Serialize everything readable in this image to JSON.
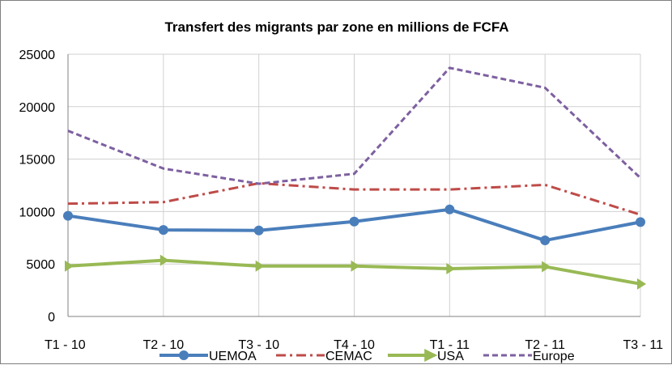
{
  "chart_data": {
    "type": "line",
    "title": "Transfert des migrants par zone en millions de FCFA",
    "categories": [
      "T1 - 10",
      "T2 - 10",
      "T3 - 10",
      "T4 - 10",
      "T1 - 11",
      "T2 - 11",
      "T3 - 11"
    ],
    "ylim": [
      0,
      25000
    ],
    "yticks": [
      0,
      5000,
      10000,
      15000,
      20000,
      25000
    ],
    "grid": true,
    "legend_position": "bottom",
    "series": [
      {
        "name": "UEMOA",
        "color": "#4a7ebb",
        "style": "solid-circle",
        "values": [
          9600,
          8250,
          8200,
          9050,
          10200,
          7250,
          9000
        ]
      },
      {
        "name": "CEMAC",
        "color": "#be4b48",
        "style": "dash-dot",
        "values": [
          10750,
          10900,
          12700,
          12100,
          12100,
          12550,
          9700
        ]
      },
      {
        "name": "USA",
        "color": "#98b954",
        "style": "solid-arrow",
        "values": [
          4800,
          5350,
          4800,
          4800,
          4550,
          4750,
          3100
        ]
      },
      {
        "name": "Europe",
        "color": "#7d60a0",
        "style": "dash",
        "values": [
          17700,
          14100,
          12650,
          13600,
          23700,
          21800,
          13200
        ]
      }
    ]
  }
}
